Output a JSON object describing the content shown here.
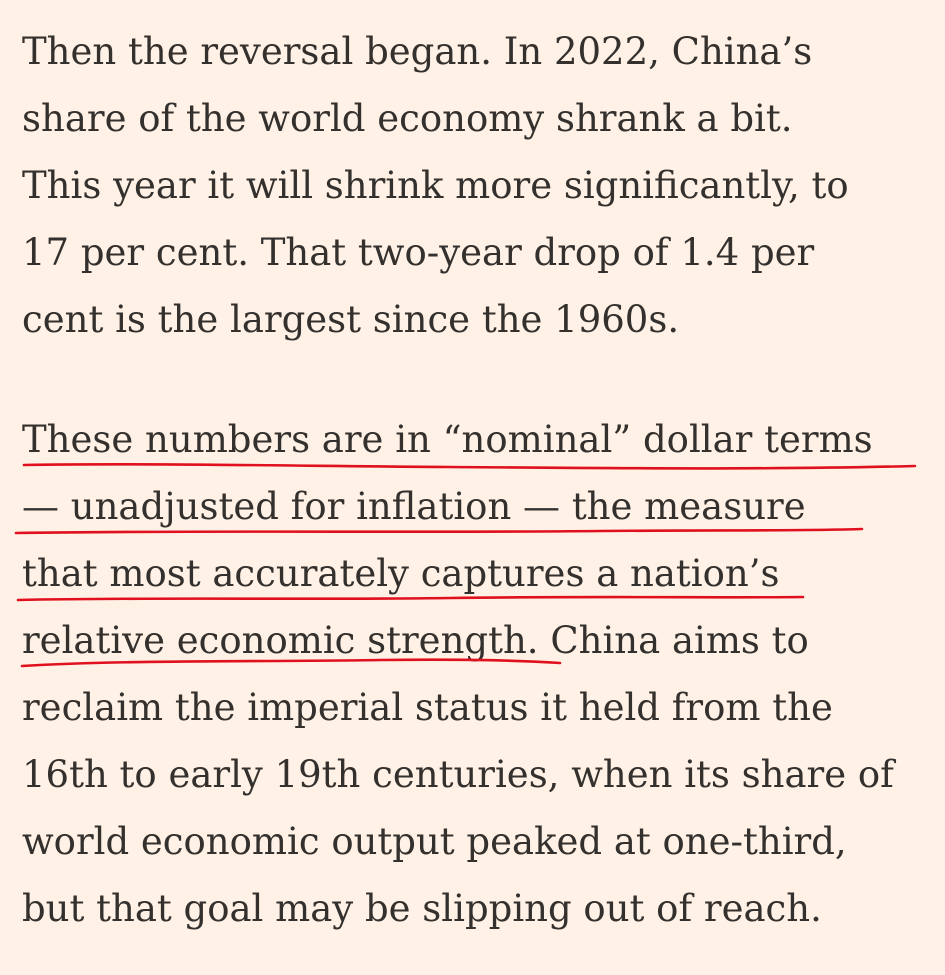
{
  "article": {
    "paragraphs": [
      {
        "lines": [
          "Then the reversal began. In 2022, China’s",
          "share of the world economy shrank a bit.",
          "This year it will shrink more significantly, to",
          "17 per cent. That two-year drop of 1.4 per",
          "cent is the largest since the 1960s."
        ]
      },
      {
        "lines": [
          "These numbers are in “nominal” dollar terms",
          "— unadjusted for inflation — the measure",
          "that most accurately captures a nation’s",
          "relative economic strength. China aims to",
          "reclaim the imperial status it held from the",
          "16th to early 19th centuries, when its share of",
          "world economic output peaked at one-third,",
          "but that goal may be slipping out of reach."
        ]
      }
    ]
  },
  "annotation": {
    "color": "#e0101e"
  }
}
